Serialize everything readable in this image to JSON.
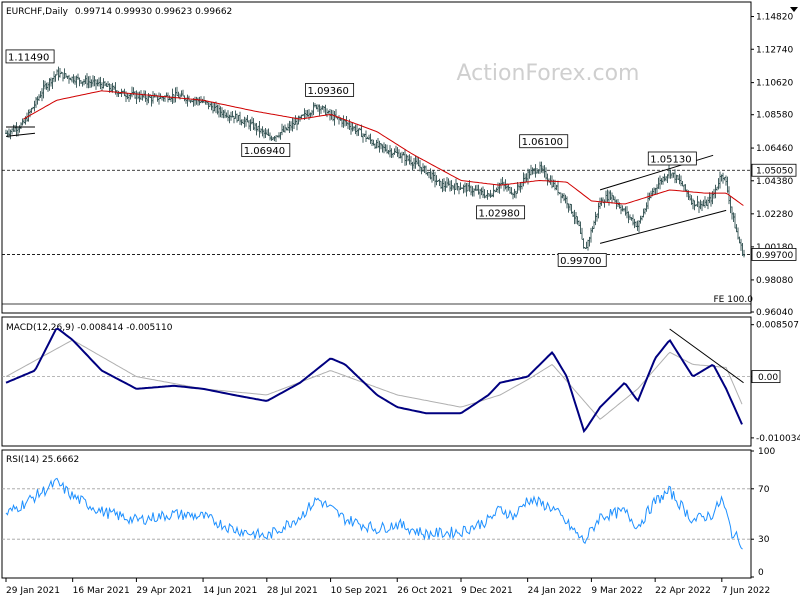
{
  "header": {
    "symbol": "EURCHF,Daily",
    "ohlc": "0.99714 0.99930 0.99623 0.99662"
  },
  "watermark": "ActionForex.com",
  "colors": {
    "bars": "#2f4f4f",
    "ma": "#d00000",
    "macd": "#000080",
    "signal": "#b0b0b0",
    "rsi": "#1e90ff",
    "grid": "#a0a0a0"
  },
  "chart_data": [
    {
      "type": "bar",
      "name": "price",
      "ylim": [
        0.9604,
        1.1568
      ],
      "y_ticks": [
        "1.14820",
        "1.12740",
        "1.10620",
        "1.08580",
        "1.06460",
        "1.04380",
        "1.02280",
        "1.00180",
        "0.98080",
        "0.96040"
      ],
      "y_tick_values": [
        1.1482,
        1.1274,
        1.1062,
        1.0858,
        1.0646,
        1.0438,
        1.0228,
        1.0018,
        0.9808,
        0.9604
      ],
      "price_badges": [
        {
          "label": "1.05050",
          "value": 1.0505,
          "style": "white"
        },
        {
          "label": "0.99700",
          "value": 0.997,
          "style": "white"
        }
      ],
      "horizontal_levels": [
        1.0505,
        0.997
      ],
      "fib_label": "FE 100.0",
      "annotations": [
        {
          "text": "1.11490",
          "date": "2021-01-29",
          "value": 1.1149
        },
        {
          "text": "1.09360",
          "date": "2021-09-01",
          "value": 1.0936
        },
        {
          "text": "1.06940",
          "date": "2021-07-30",
          "value": 1.0694
        },
        {
          "text": "1.06100",
          "date": "2022-01-24",
          "value": 1.061
        },
        {
          "text": "1.02980",
          "date": "2021-12-28",
          "value": 1.0298
        },
        {
          "text": "1.05130",
          "date": "2022-04-20",
          "value": 1.0513
        },
        {
          "text": "0.99700",
          "date": "2022-03-04",
          "value": 0.997
        }
      ],
      "close_anchors": [
        [
          "2021-01-29",
          1.074
        ],
        [
          "2021-02-10",
          1.08
        ],
        [
          "2021-02-25",
          1.104
        ],
        [
          "2021-03-05",
          1.112
        ],
        [
          "2021-03-16",
          1.109
        ],
        [
          "2021-03-25",
          1.107
        ],
        [
          "2021-04-05",
          1.105
        ],
        [
          "2021-04-20",
          1.099
        ],
        [
          "2021-04-29",
          1.098
        ],
        [
          "2021-05-10",
          1.096
        ],
        [
          "2021-05-25",
          1.098
        ],
        [
          "2021-06-05",
          1.096
        ],
        [
          "2021-06-14",
          1.094
        ],
        [
          "2021-06-25",
          1.088
        ],
        [
          "2021-07-05",
          1.085
        ],
        [
          "2021-07-20",
          1.078
        ],
        [
          "2021-07-30",
          1.071
        ],
        [
          "2021-08-10",
          1.076
        ],
        [
          "2021-08-20",
          1.083
        ],
        [
          "2021-09-01",
          1.092
        ],
        [
          "2021-09-10",
          1.085
        ],
        [
          "2021-09-20",
          1.081
        ],
        [
          "2021-10-01",
          1.074
        ],
        [
          "2021-10-12",
          1.066
        ],
        [
          "2021-10-26",
          1.061
        ],
        [
          "2021-11-05",
          1.056
        ],
        [
          "2021-11-15",
          1.05
        ],
        [
          "2021-11-25",
          1.041
        ],
        [
          "2021-12-09",
          1.04
        ],
        [
          "2021-12-20",
          1.037
        ],
        [
          "2021-12-28",
          1.034
        ],
        [
          "2022-01-05",
          1.042
        ],
        [
          "2022-01-15",
          1.036
        ],
        [
          "2022-01-24",
          1.048
        ],
        [
          "2022-02-01",
          1.052
        ],
        [
          "2022-02-10",
          1.042
        ],
        [
          "2022-02-20",
          1.031
        ],
        [
          "2022-02-28",
          1.016
        ],
        [
          "2022-03-04",
          0.998
        ],
        [
          "2022-03-09",
          1.012
        ],
        [
          "2022-03-15",
          1.03
        ],
        [
          "2022-03-22",
          1.035
        ],
        [
          "2022-04-01",
          1.024
        ],
        [
          "2022-04-10",
          1.015
        ],
        [
          "2022-04-20",
          1.037
        ],
        [
          "2022-04-26",
          1.044
        ],
        [
          "2022-05-02",
          1.05
        ],
        [
          "2022-05-10",
          1.042
        ],
        [
          "2022-05-18",
          1.03
        ],
        [
          "2022-05-26",
          1.028
        ],
        [
          "2022-06-01",
          1.034
        ],
        [
          "2022-06-07",
          1.049
        ],
        [
          "2022-06-10",
          1.042
        ],
        [
          "2022-06-14",
          1.023
        ],
        [
          "2022-06-18",
          1.008
        ],
        [
          "2022-06-22",
          0.9966
        ]
      ],
      "ma_anchors": [
        [
          "2021-02-10",
          1.083
        ],
        [
          "2021-03-05",
          1.095
        ],
        [
          "2021-04-05",
          1.101
        ],
        [
          "2021-05-10",
          1.098
        ],
        [
          "2021-06-14",
          1.095
        ],
        [
          "2021-07-20",
          1.088
        ],
        [
          "2021-08-20",
          1.083
        ],
        [
          "2021-09-10",
          1.086
        ],
        [
          "2021-10-12",
          1.075
        ],
        [
          "2021-11-05",
          1.061
        ],
        [
          "2021-12-09",
          1.044
        ],
        [
          "2022-01-05",
          1.041
        ],
        [
          "2022-02-01",
          1.044
        ],
        [
          "2022-02-20",
          1.043
        ],
        [
          "2022-03-09",
          1.031
        ],
        [
          "2022-04-01",
          1.029
        ],
        [
          "2022-05-02",
          1.038
        ],
        [
          "2022-05-26",
          1.036
        ],
        [
          "2022-06-10",
          1.036
        ],
        [
          "2022-06-22",
          1.028
        ]
      ],
      "channel_lines": [
        [
          [
            "2021-01-29",
            1.078
          ],
          [
            "2021-02-18",
            1.078
          ]
        ],
        [
          [
            "2021-01-29",
            1.072
          ],
          [
            "2021-02-18",
            1.074
          ]
        ],
        [
          [
            "2022-03-15",
            1.004
          ],
          [
            "2022-06-10",
            1.025
          ]
        ],
        [
          [
            "2022-03-15",
            1.038
          ],
          [
            "2022-06-01",
            1.06
          ]
        ]
      ],
      "x_ticks": [
        "29 Jan 2021",
        "16 Mar 2021",
        "29 Apr 2021",
        "14 Jun 2021",
        "28 Jul 2021",
        "10 Sep 2021",
        "26 Oct 2021",
        "9 Dec 2021",
        "24 Jan 2022",
        "9 Mar 2022",
        "22 Apr 2022",
        "7 Jun 2022"
      ],
      "x_tick_dates": [
        "2021-01-29",
        "2021-03-16",
        "2021-04-29",
        "2021-06-14",
        "2021-07-28",
        "2021-09-10",
        "2021-10-26",
        "2021-12-09",
        "2022-01-24",
        "2022-03-09",
        "2022-04-22",
        "2022-06-07"
      ]
    },
    {
      "type": "line",
      "name": "MACD",
      "label": "MACD(12,26,9) -0.008414 -0.005110",
      "ylim": [
        -0.0112,
        0.0096
      ],
      "y_ticks": [
        "0.008507",
        "0.00",
        "-0.010034"
      ],
      "y_tick_values": [
        0.008507,
        0.0,
        -0.010034
      ],
      "zero_badge": "0.00",
      "macd_anchors": [
        [
          "2021-01-29",
          -0.001
        ],
        [
          "2021-02-18",
          0.001
        ],
        [
          "2021-03-05",
          0.008
        ],
        [
          "2021-03-16",
          0.006
        ],
        [
          "2021-04-05",
          0.001
        ],
        [
          "2021-04-29",
          -0.002
        ],
        [
          "2021-05-25",
          -0.0015
        ],
        [
          "2021-06-14",
          -0.002
        ],
        [
          "2021-07-05",
          -0.003
        ],
        [
          "2021-07-28",
          -0.004
        ],
        [
          "2021-08-20",
          -0.001
        ],
        [
          "2021-09-10",
          0.003
        ],
        [
          "2021-09-20",
          0.002
        ],
        [
          "2021-10-12",
          -0.003
        ],
        [
          "2021-10-26",
          -0.005
        ],
        [
          "2021-11-15",
          -0.006
        ],
        [
          "2021-12-09",
          -0.006
        ],
        [
          "2021-12-28",
          -0.003
        ],
        [
          "2022-01-05",
          -0.001
        ],
        [
          "2022-01-24",
          0.0
        ],
        [
          "2022-02-10",
          0.004
        ],
        [
          "2022-02-20",
          0.0
        ],
        [
          "2022-03-04",
          -0.009
        ],
        [
          "2022-03-15",
          -0.005
        ],
        [
          "2022-04-01",
          -0.001
        ],
        [
          "2022-04-10",
          -0.004
        ],
        [
          "2022-04-22",
          0.003
        ],
        [
          "2022-05-02",
          0.006
        ],
        [
          "2022-05-18",
          0.0
        ],
        [
          "2022-06-01",
          0.002
        ],
        [
          "2022-06-10",
          -0.002
        ],
        [
          "2022-06-22",
          -0.0084
        ]
      ],
      "signal_anchors": [
        [
          "2021-01-29",
          0.0
        ],
        [
          "2021-03-16",
          0.006
        ],
        [
          "2021-04-29",
          0.0
        ],
        [
          "2021-06-14",
          -0.002
        ],
        [
          "2021-07-28",
          -0.003
        ],
        [
          "2021-09-10",
          0.001
        ],
        [
          "2021-10-26",
          -0.003
        ],
        [
          "2021-12-09",
          -0.005
        ],
        [
          "2022-01-05",
          -0.003
        ],
        [
          "2022-01-24",
          -0.0005
        ],
        [
          "2022-02-10",
          0.002
        ],
        [
          "2022-03-04",
          -0.004
        ],
        [
          "2022-03-15",
          -0.007
        ],
        [
          "2022-04-10",
          -0.002
        ],
        [
          "2022-05-02",
          0.004
        ],
        [
          "2022-05-18",
          0.002
        ],
        [
          "2022-06-10",
          0.0015
        ],
        [
          "2022-06-22",
          -0.0051
        ]
      ],
      "trendline": [
        [
          "2022-05-02",
          0.0078
        ],
        [
          "2022-06-22",
          -0.001
        ]
      ]
    },
    {
      "type": "line",
      "name": "RSI",
      "label": "RSI(14) 25.6662",
      "ylim": [
        0,
        100
      ],
      "y_ticks": [
        "100",
        "70",
        "30",
        "0"
      ],
      "y_tick_values": [
        100,
        70,
        30,
        0
      ],
      "levels": [
        70,
        30
      ],
      "rsi_anchors": [
        [
          "2021-01-29",
          50
        ],
        [
          "2021-02-10",
          58
        ],
        [
          "2021-03-05",
          75
        ],
        [
          "2021-03-16",
          64
        ],
        [
          "2021-04-05",
          52
        ],
        [
          "2021-04-29",
          45
        ],
        [
          "2021-05-25",
          50
        ],
        [
          "2021-06-14",
          48
        ],
        [
          "2021-07-05",
          38
        ],
        [
          "2021-07-28",
          32
        ],
        [
          "2021-08-20",
          48
        ],
        [
          "2021-09-01",
          62
        ],
        [
          "2021-09-20",
          46
        ],
        [
          "2021-10-12",
          38
        ],
        [
          "2021-10-26",
          42
        ],
        [
          "2021-11-15",
          34
        ],
        [
          "2021-12-09",
          36
        ],
        [
          "2021-12-28",
          45
        ],
        [
          "2022-01-05",
          54
        ],
        [
          "2022-01-15",
          48
        ],
        [
          "2022-01-24",
          62
        ],
        [
          "2022-02-10",
          55
        ],
        [
          "2022-03-04",
          28
        ],
        [
          "2022-03-15",
          48
        ],
        [
          "2022-04-01",
          52
        ],
        [
          "2022-04-10",
          40
        ],
        [
          "2022-04-22",
          60
        ],
        [
          "2022-05-02",
          68
        ],
        [
          "2022-05-18",
          45
        ],
        [
          "2022-06-01",
          50
        ],
        [
          "2022-06-07",
          62
        ],
        [
          "2022-06-14",
          35
        ],
        [
          "2022-06-22",
          25.7
        ]
      ]
    }
  ]
}
